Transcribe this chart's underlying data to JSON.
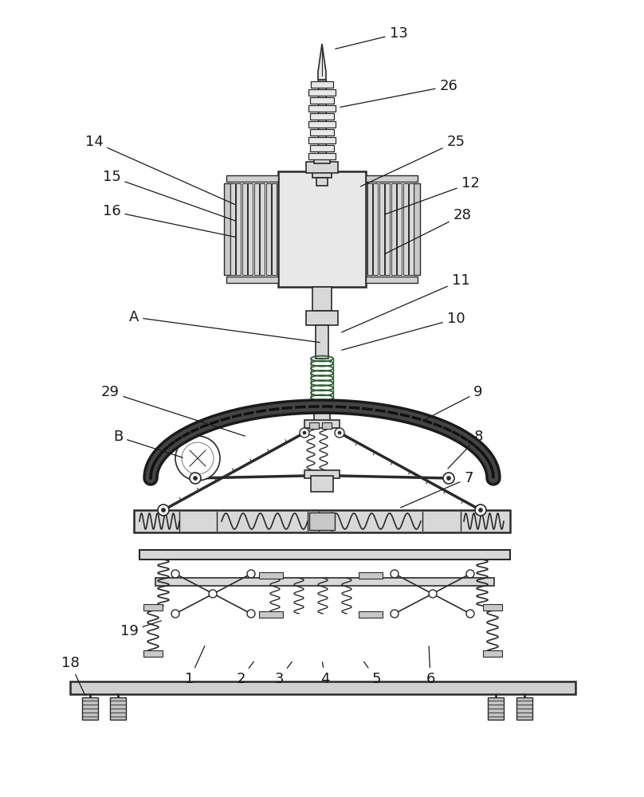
{
  "bg_color": "#ffffff",
  "line_color": "#2a2a2a",
  "figsize": [
    8.08,
    10.0
  ],
  "dpi": 100,
  "labels_data": [
    [
      "13",
      500,
      42,
      418,
      62
    ],
    [
      "26",
      563,
      108,
      424,
      135
    ],
    [
      "14",
      118,
      178,
      298,
      258
    ],
    [
      "25",
      572,
      178,
      450,
      235
    ],
    [
      "15",
      140,
      222,
      298,
      278
    ],
    [
      "12",
      590,
      230,
      480,
      270
    ],
    [
      "16",
      140,
      265,
      298,
      298
    ],
    [
      "28",
      580,
      270,
      480,
      320
    ],
    [
      "11",
      578,
      352,
      426,
      418
    ],
    [
      "A",
      168,
      398,
      404,
      430
    ],
    [
      "10",
      572,
      400,
      426,
      440
    ],
    [
      "29",
      138,
      492,
      310,
      548
    ],
    [
      "9",
      600,
      492,
      530,
      528
    ],
    [
      "B",
      148,
      548,
      232,
      575
    ],
    [
      "8",
      600,
      548,
      560,
      590
    ],
    [
      "7",
      588,
      600,
      500,
      638
    ],
    [
      "19",
      162,
      792,
      205,
      778
    ],
    [
      "18",
      88,
      832,
      108,
      875
    ],
    [
      "1",
      238,
      852,
      258,
      808
    ],
    [
      "2",
      302,
      852,
      320,
      828
    ],
    [
      "3",
      350,
      852,
      368,
      828
    ],
    [
      "4",
      408,
      852,
      404,
      828
    ],
    [
      "5",
      472,
      852,
      455,
      828
    ],
    [
      "6",
      540,
      852,
      538,
      808
    ]
  ]
}
